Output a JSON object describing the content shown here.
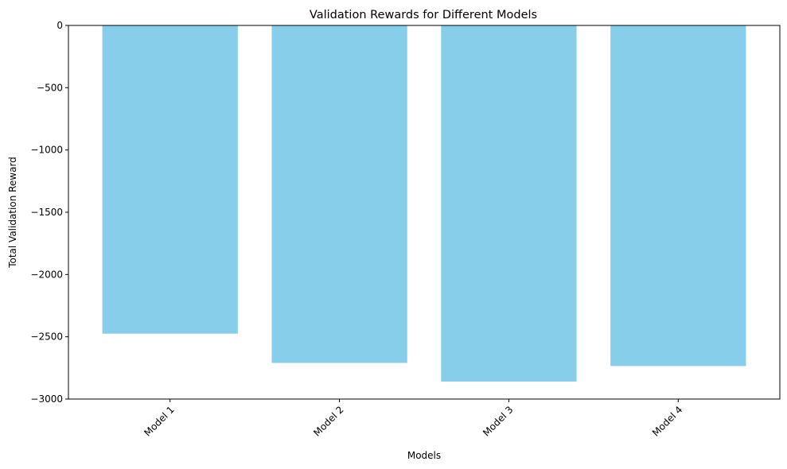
{
  "chart_data": {
    "type": "bar",
    "title": "Validation Rewards for Different Models",
    "xlabel": "Models",
    "ylabel": "Total Validation Reward",
    "categories": [
      "Model 1",
      "Model 2",
      "Model 3",
      "Model 4"
    ],
    "values": [
      -2475,
      -2710,
      -2860,
      -2735
    ],
    "ylim": [
      -3000,
      0
    ],
    "yticks": [
      0,
      -500,
      -1000,
      -1500,
      -2000,
      -2500,
      -3000
    ],
    "ytick_labels": [
      "0",
      "−500",
      "−1000",
      "−1500",
      "−2000",
      "−2500",
      "−3000"
    ],
    "bar_color": "#87ceeb",
    "grid": false,
    "xtick_rotation": 45
  }
}
